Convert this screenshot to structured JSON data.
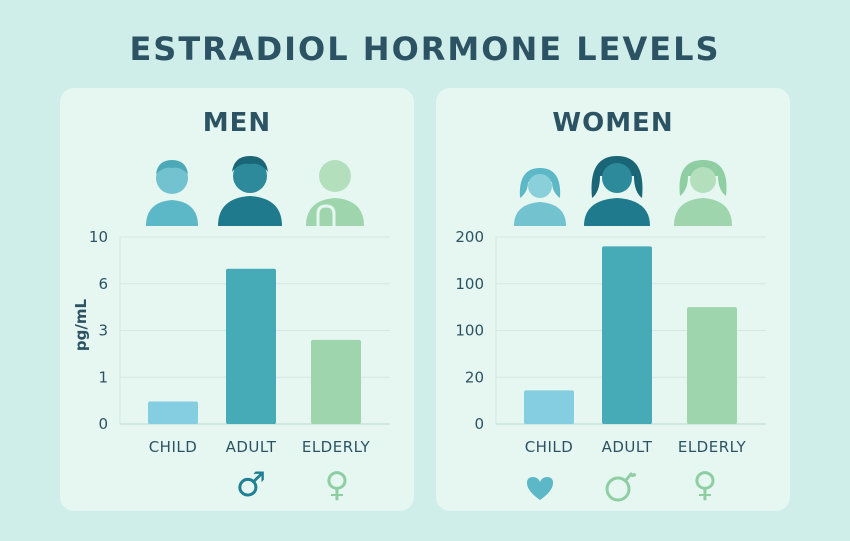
{
  "title": "ESTRADIOL HORMONE LEVELS",
  "colors": {
    "child": "#85cde0",
    "adult": "#46aab7",
    "elderly": "#9fd5ad",
    "text": "#2c5363",
    "symbol_adult": "#1f7f93",
    "symbol_elderly": "#8fcea3"
  },
  "chart_data": [
    {
      "type": "bar",
      "title": "MEN",
      "ylabel": "pg/mL",
      "categories": [
        "CHILD",
        "ADULT",
        "ELDERLY"
      ],
      "values": [
        1.2,
        8.3,
        4.5
      ],
      "yticks": [
        "0",
        "1",
        "3",
        "6",
        "10"
      ],
      "ylim": [
        0,
        10
      ],
      "grid": "horizontal",
      "icons": [
        "boy-avatar-icon",
        "man-avatar-icon",
        "elderly-man-avatar-icon"
      ],
      "symbols": [
        "",
        "♂",
        "♀"
      ]
    },
    {
      "type": "bar",
      "title": "WOMEN",
      "ylabel": "",
      "categories": [
        "CHILD",
        "ADULT",
        "ELDERLY"
      ],
      "values": [
        36,
        190,
        125
      ],
      "yticks": [
        "0",
        "20",
        "100",
        "100",
        "200"
      ],
      "ylim": [
        0,
        200
      ],
      "grid": "horizontal",
      "icons": [
        "girl-avatar-icon",
        "woman-avatar-icon",
        "elderly-woman-avatar-icon"
      ],
      "symbols": [
        "heart-icon",
        "apple-symbol-icon",
        "♀"
      ]
    }
  ]
}
